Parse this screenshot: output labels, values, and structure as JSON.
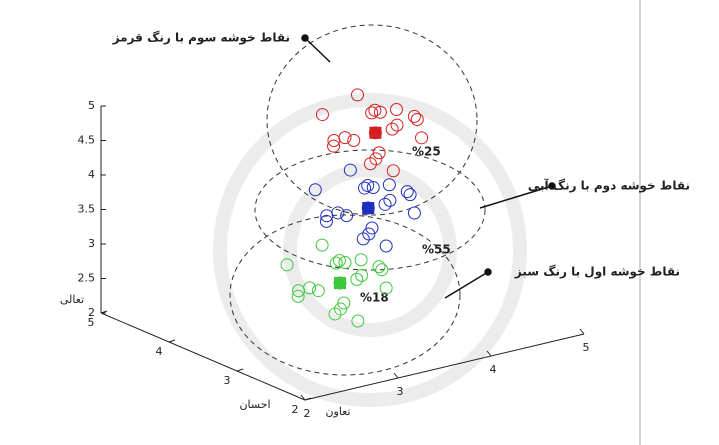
{
  "chart_data": {
    "type": "scatter3d",
    "x_label": "تعاون",
    "y_label": "احسان",
    "z_label": "تعالی",
    "xlim": [
      2,
      5
    ],
    "ylim": [
      2,
      5
    ],
    "zlim": [
      2,
      5
    ],
    "xticks": [
      2,
      3,
      4,
      5
    ],
    "yticks": [
      2,
      3,
      4,
      5
    ],
    "zticks": [
      2,
      2.5,
      3,
      3.5,
      4,
      4.5,
      5
    ],
    "series": [
      {
        "color": "#d42020",
        "percent_label": "%25",
        "annotation": "نقاط خوشه سوم با رنگ قرمز",
        "centroid": {
          "x": 4.0,
          "y": 3.7,
          "z": 4.52
        },
        "x": [
          4.0,
          4.3,
          3.7,
          4.2,
          3.8,
          4.4,
          3.6,
          4.1,
          3.9,
          4.35,
          3.65,
          4.15,
          3.85,
          4.25,
          3.75,
          4.05,
          3.95,
          4.45,
          3.55,
          4.2
        ],
        "y": [
          3.7,
          3.8,
          3.9,
          3.4,
          3.5,
          4.0,
          3.6,
          4.1,
          3.3,
          3.5,
          4.0,
          3.85,
          3.55,
          4.05,
          3.35,
          3.45,
          3.95,
          3.7,
          3.7,
          3.9
        ],
        "z": [
          4.52,
          4.72,
          4.42,
          4.82,
          4.22,
          4.32,
          4.62,
          4.87,
          4.17,
          4.42,
          4.77,
          4.12,
          4.92,
          4.62,
          4.37,
          4.72,
          4.32,
          4.57,
          4.47,
          4.67
        ]
      },
      {
        "color": "#1f2fc0",
        "percent_label": "%55",
        "annotation": "نقاط خوشه دوم با رنگ آبی",
        "centroid": {
          "x": 3.85,
          "y": 3.6,
          "z": 3.52
        },
        "x": [
          3.85,
          4.15,
          3.55,
          4.05,
          3.65,
          4.25,
          3.45,
          3.95,
          3.75,
          4.2,
          3.5,
          4.0,
          3.7,
          4.1,
          3.6,
          3.9,
          3.8,
          4.3,
          3.4,
          4.05
        ],
        "y": [
          3.6,
          3.7,
          3.8,
          3.3,
          3.4,
          3.9,
          3.5,
          4.0,
          3.2,
          3.4,
          3.9,
          3.75,
          3.45,
          3.95,
          3.25,
          3.35,
          3.85,
          3.6,
          3.6,
          3.8
        ],
        "z": [
          3.52,
          3.72,
          3.42,
          3.82,
          3.22,
          3.32,
          3.62,
          3.87,
          3.17,
          3.42,
          3.77,
          3.12,
          3.92,
          3.62,
          3.37,
          3.72,
          3.32,
          3.57,
          3.47,
          3.67
        ]
      },
      {
        "color": "#3cc83c",
        "percent_label": "%18",
        "annotation": "نقاط خوشه اول با رنگ سبز",
        "centroid": {
          "x": 3.4,
          "y": 3.4,
          "z": 2.66
        },
        "x": [
          3.4,
          3.7,
          3.1,
          3.6,
          3.2,
          3.8,
          3.0,
          3.5,
          3.3,
          3.75,
          3.05,
          3.55,
          3.25,
          3.65,
          3.15,
          3.45,
          3.35,
          3.85,
          2.95,
          3.6
        ],
        "y": [
          3.4,
          3.5,
          3.6,
          3.1,
          3.2,
          3.7,
          3.3,
          3.8,
          3.0,
          3.2,
          3.7,
          3.55,
          3.25,
          3.75,
          3.05,
          3.15,
          3.65,
          3.4,
          3.4,
          3.6
        ],
        "z": [
          2.66,
          2.86,
          2.56,
          2.96,
          2.36,
          2.46,
          2.76,
          3.01,
          2.31,
          2.56,
          2.91,
          2.26,
          3.06,
          2.76,
          2.51,
          2.86,
          2.46,
          2.71,
          2.61,
          2.81
        ]
      }
    ]
  }
}
